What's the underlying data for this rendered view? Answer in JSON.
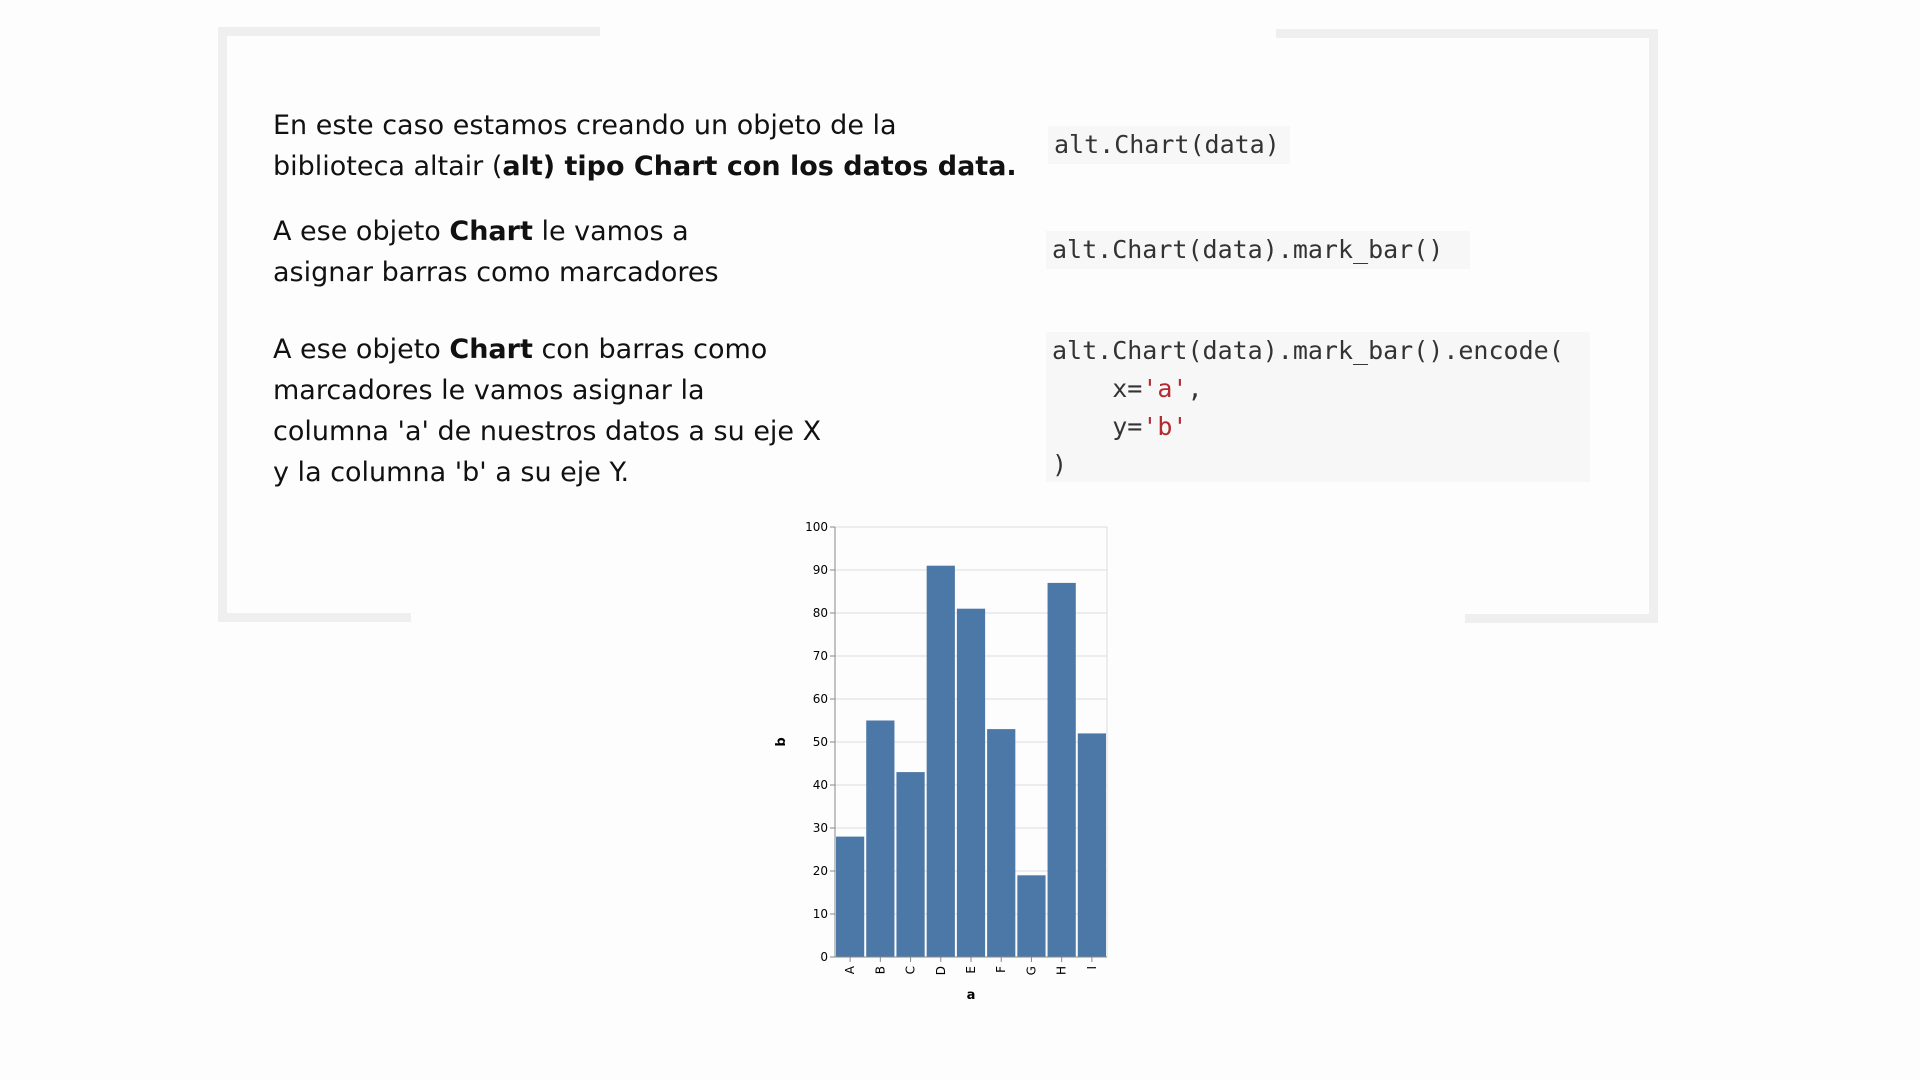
{
  "paragraphs": [
    {
      "line1": "En este caso estamos creando un objeto de la",
      "line2_plain": "biblioteca altair (",
      "line2_bold": "alt) tipo Chart con los datos data."
    },
    {
      "part1": "A ese objeto ",
      "bold": "Chart",
      "part2": " le vamos a",
      "line2": "asignar barras como marcadores"
    },
    {
      "part1": "A ese objeto ",
      "bold": "Chart",
      "part2": " con barras como",
      "line2": "marcadores le vamos asignar la",
      "line3": "columna 'a' de nuestros datos a su eje X",
      "line4": "y la columna 'b' a su eje Y."
    }
  ],
  "code": {
    "snippet1": "alt.Chart(data)",
    "snippet2": "alt.Chart(data).mark_bar()",
    "snippet3_line1": "alt.Chart(data).mark_bar().encode(",
    "snippet3_x_key": "    x=",
    "snippet3_x_val": "'a'",
    "snippet3_x_comma": ",",
    "snippet3_y_key": "    y=",
    "snippet3_y_val": "'b'",
    "snippet3_close": ")"
  },
  "colors": {
    "bar": "#4c78a8",
    "code_string": "#b22b31",
    "frame": "#efefef"
  },
  "chart_data": {
    "type": "bar",
    "categories": [
      "A",
      "B",
      "C",
      "D",
      "E",
      "F",
      "G",
      "H",
      "I"
    ],
    "values": [
      28,
      55,
      43,
      91,
      81,
      53,
      19,
      87,
      52
    ],
    "xlabel": "a",
    "ylabel": "b",
    "ylim": [
      0,
      100
    ],
    "yticks": [
      0,
      10,
      20,
      30,
      40,
      50,
      60,
      70,
      80,
      90,
      100
    ],
    "grid": true
  }
}
